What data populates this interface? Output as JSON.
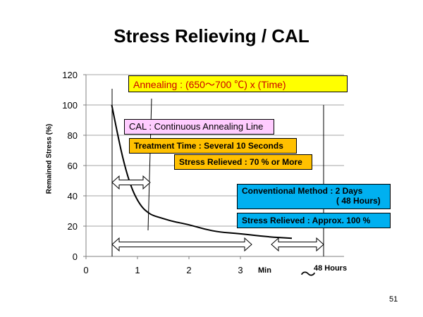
{
  "chart_data": {
    "type": "line",
    "title": "Stress Relieving / CAL",
    "xlabel": "",
    "ylabel": "Remained Stress (%)",
    "xlim": [
      0,
      5
    ],
    "ylim": [
      0,
      120
    ],
    "x_ticks": [
      "0",
      "1",
      "2",
      "3"
    ],
    "y_ticks": [
      "0",
      "20",
      "40",
      "60",
      "80",
      "100",
      "120"
    ],
    "grid": true,
    "series": [
      {
        "x": [
          0.5,
          0.6,
          0.7,
          0.8,
          0.9,
          1.0,
          1.1,
          1.2,
          1.3,
          1.5,
          1.7,
          2.0,
          2.3,
          2.6,
          3.0,
          3.5,
          4.0
        ],
        "y": [
          100,
          83,
          67,
          54,
          44,
          37,
          32,
          29,
          27,
          25,
          23,
          21,
          18,
          16,
          15,
          13,
          12
        ]
      }
    ],
    "annotations": {
      "annealing": "Annealing : (650～700 ℃) x (Time)",
      "cal": "CAL : Continuous Annealing Line",
      "treatment_time": "Treatment Time : Several 10 Seconds",
      "stress_relieved_cal": "Stress Relieved : 70 % or More",
      "conventional_line1": "Conventional Method : 2 Days",
      "conventional_line2": "( 48 Hours)",
      "stress_relieved_conv": "Stress Relieved : Approx. 100 %",
      "min_label": "Min",
      "tilde": "～",
      "hours_label": "48 Hours"
    }
  },
  "page_number": "51"
}
